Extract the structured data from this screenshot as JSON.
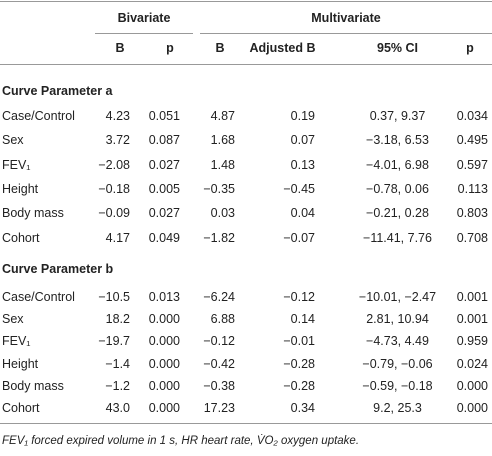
{
  "table": {
    "group_headers": [
      "Bivariate",
      "Multivariate"
    ],
    "column_headers": [
      "B",
      "p",
      "B",
      "Adjusted B",
      "95% CI",
      "p"
    ],
    "sections": [
      {
        "title": "Curve Parameter a",
        "rows": [
          [
            "Case/Control",
            "4.23",
            "0.051",
            "4.87",
            "0.19",
            "0.37, 9.37",
            "0.034"
          ],
          [
            "Sex",
            "3.72",
            "0.087",
            "1.68",
            "0.07",
            "−3.18, 6.53",
            "0.495"
          ],
          [
            "FEV₁",
            "−2.08",
            "0.027",
            "1.48",
            "0.13",
            "−4.01, 6.98",
            "0.597"
          ],
          [
            "Height",
            "−0.18",
            "0.005",
            "−0.35",
            "−0.45",
            "−0.78, 0.06",
            "0.113"
          ],
          [
            "Body mass",
            "−0.09",
            "0.027",
            "0.03",
            "0.04",
            "−0.21, 0.28",
            "0.803"
          ],
          [
            "Cohort",
            "4.17",
            "0.049",
            "−1.82",
            "−0.07",
            "−11.41, 7.76",
            "0.708"
          ]
        ]
      },
      {
        "title": "Curve Parameter b",
        "rows": [
          [
            "Case/Control",
            "−10.5",
            "0.013",
            "−6.24",
            "−0.12",
            "−10.01, −2.47",
            "0.001"
          ],
          [
            "Sex",
            "18.2",
            "0.000",
            "6.88",
            "0.14",
            "2.81, 10.94",
            "0.001"
          ],
          [
            "FEV₁",
            "−19.7",
            "0.000",
            "−0.12",
            "−0.01",
            "−4.73, 4.49",
            "0.959"
          ],
          [
            "Height",
            "−1.4",
            "0.000",
            "−0.42",
            "−0.28",
            "−0.79, −0.06",
            "0.024"
          ],
          [
            "Body mass",
            "−1.2",
            "0.000",
            "−0.38",
            "−0.28",
            "−0.59, −0.18",
            "0.000"
          ],
          [
            "Cohort",
            "43.0",
            "0.000",
            "17.23",
            "0.34",
            "9.2, 25.3",
            "0.000"
          ]
        ]
      }
    ],
    "footnote": "FEV₁ forced expired volume in 1 s, HR heart rate, V̇O₂ oxygen uptake."
  }
}
